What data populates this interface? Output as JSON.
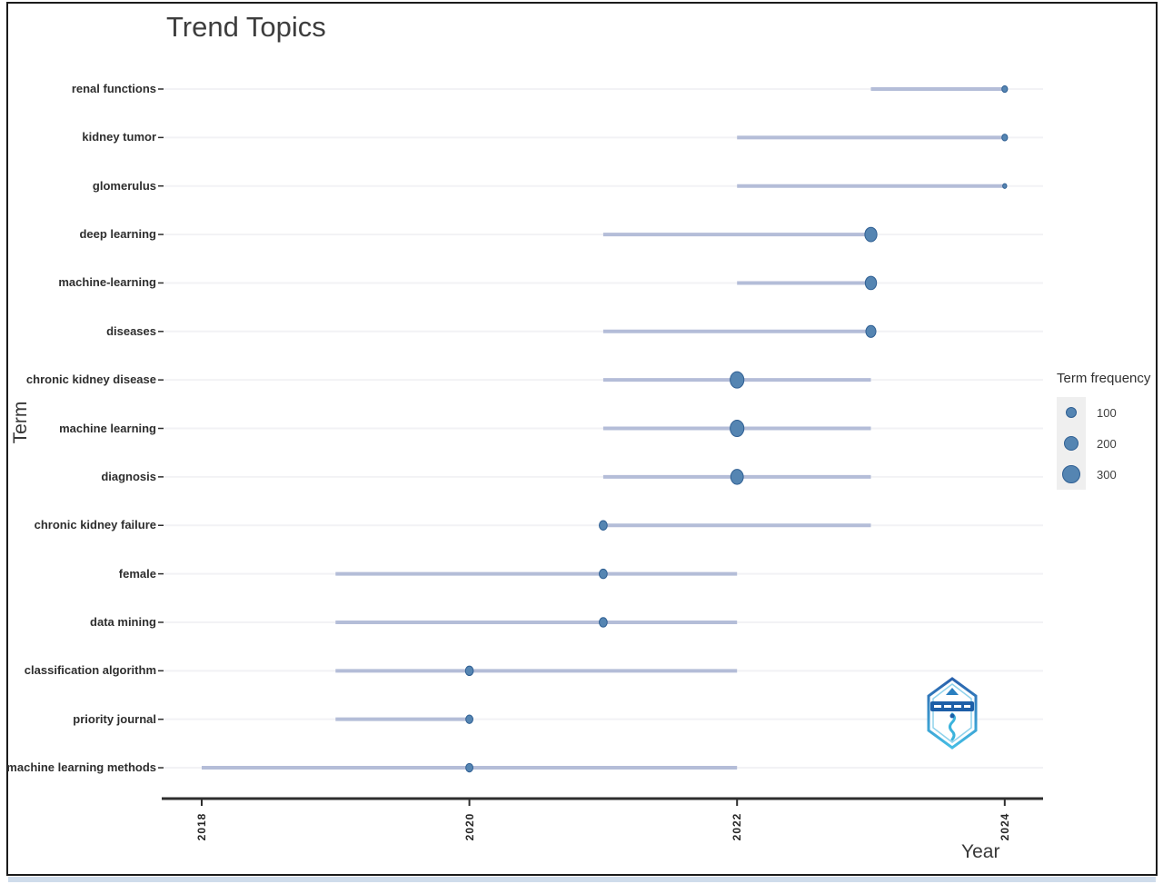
{
  "figure": {
    "title": "Trend Topics",
    "x_axis_label": "Year",
    "y_axis_label": "Term",
    "legend_title": "Term frequency"
  },
  "colors": {
    "dot_fill": "#5585b2",
    "dot_stroke": "#2f5f93",
    "range_line": "#b4bdd8",
    "gridline": "#f2f2f5",
    "axis_line": "#2e2e2e",
    "tick_mark": "#2e2e2e",
    "legend_key_bg": "#efefef",
    "logo_dark_blue": "#1d5fa8",
    "logo_light_blue": "#45bde4"
  },
  "chart_data": {
    "type": "scatter",
    "subtype": "trend-topics-dumbbell",
    "title": "Trend Topics",
    "xlabel": "Year",
    "ylabel": "Term",
    "x_ticks": [
      2018,
      2020,
      2022,
      2024
    ],
    "x_range": [
      2017.6,
      2024.3
    ],
    "layout_hints": {
      "grid": "horizontal-only",
      "legend_position": "right",
      "x_tick_rotation": 90,
      "dot_size_encodes": "term frequency (sqrt scale)"
    },
    "legend": {
      "title": "Term frequency",
      "sizes": [
        100,
        200,
        300
      ]
    },
    "terms": [
      {
        "term": "renal functions",
        "year_start": 2023,
        "year_peak": 2024,
        "year_end": 2024,
        "frequency": 50
      },
      {
        "term": "kidney tumor",
        "year_start": 2022,
        "year_peak": 2024,
        "year_end": 2024,
        "frequency": 50
      },
      {
        "term": "glomerulus",
        "year_start": 2022,
        "year_peak": 2024,
        "year_end": 2024,
        "frequency": 25
      },
      {
        "term": "deep learning",
        "year_start": 2021,
        "year_peak": 2023,
        "year_end": 2023,
        "frequency": 230
      },
      {
        "term": "machine-learning",
        "year_start": 2022,
        "year_peak": 2023,
        "year_end": 2023,
        "frequency": 200
      },
      {
        "term": "diseases",
        "year_start": 2021,
        "year_peak": 2023,
        "year_end": 2023,
        "frequency": 160
      },
      {
        "term": "chronic kidney disease",
        "year_start": 2021,
        "year_peak": 2022,
        "year_end": 2023,
        "frequency": 300
      },
      {
        "term": "machine learning",
        "year_start": 2021,
        "year_peak": 2022,
        "year_end": 2023,
        "frequency": 300
      },
      {
        "term": "diagnosis",
        "year_start": 2021,
        "year_peak": 2022,
        "year_end": 2023,
        "frequency": 250
      },
      {
        "term": "chronic kidney failure",
        "year_start": 2021,
        "year_peak": 2021,
        "year_end": 2023,
        "frequency": 100
      },
      {
        "term": "female",
        "year_start": 2019,
        "year_peak": 2021,
        "year_end": 2022,
        "frequency": 100
      },
      {
        "term": "data mining",
        "year_start": 2019,
        "year_peak": 2021,
        "year_end": 2022,
        "frequency": 100
      },
      {
        "term": "classification algorithm",
        "year_start": 2019,
        "year_peak": 2020,
        "year_end": 2022,
        "frequency": 100
      },
      {
        "term": "priority journal",
        "year_start": 2019,
        "year_peak": 2020,
        "year_end": 2020,
        "frequency": 80
      },
      {
        "term": "machine learning methods",
        "year_start": 2018,
        "year_peak": 2020,
        "year_end": 2022,
        "frequency": 80
      }
    ]
  }
}
